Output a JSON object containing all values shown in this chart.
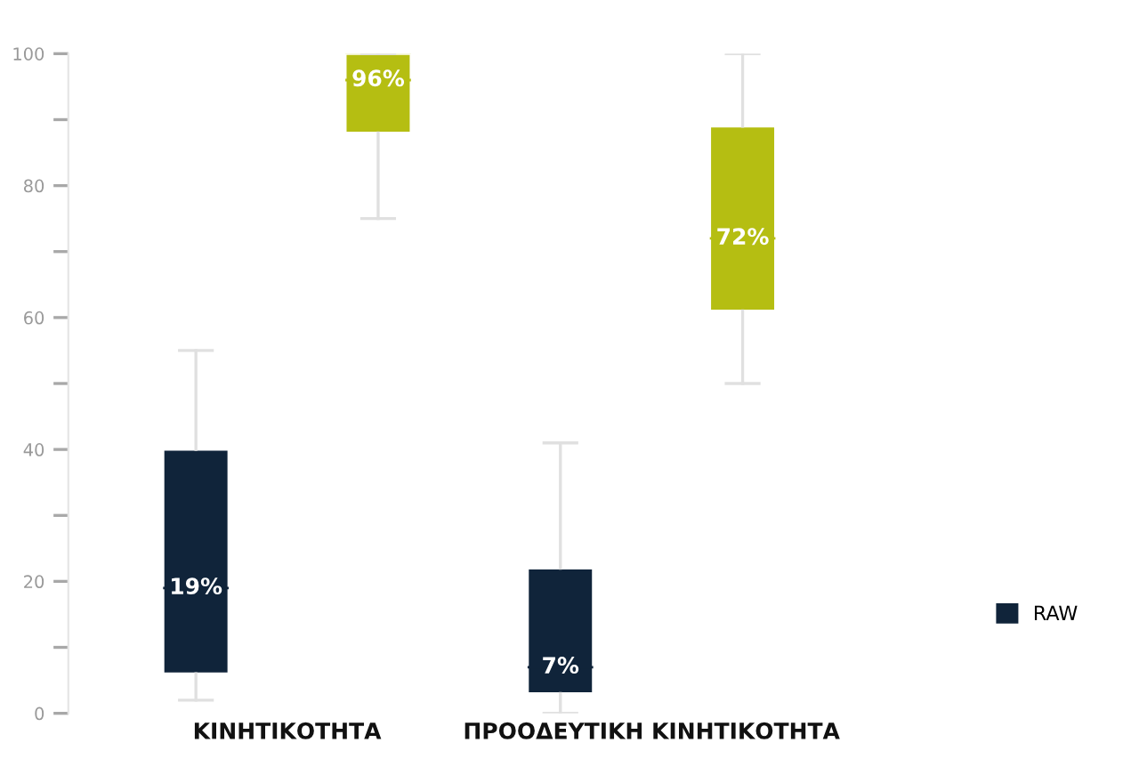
{
  "chart_data": {
    "type": "box",
    "categories": [
      "ΚΙΝΗΤΙΚΟΤΗΤΑ",
      "ΠΡΟΟΔΕΥΤΙΚΗ ΚΙΝΗΤΙΚΟΤΗΤΑ"
    ],
    "series": [
      {
        "name": "RAW",
        "color": "#10243a",
        "boxes": [
          {
            "low": 2,
            "q1": 6,
            "median": 19,
            "q3": 40,
            "high": 55
          },
          {
            "low": 0,
            "q1": 3,
            "median": 7,
            "q3": 22,
            "high": 41
          }
        ],
        "value_labels": [
          "19%",
          "7%"
        ]
      },
      {
        "color": "#b5be12",
        "boxes": [
          {
            "low": 75,
            "q1": 88,
            "median": 96,
            "q3": 100,
            "high": 100
          },
          {
            "low": 50,
            "q1": 61,
            "median": 72,
            "q3": 89,
            "high": 100
          }
        ],
        "value_labels": [
          "96%",
          "72%"
        ]
      }
    ],
    "ylim": [
      0,
      100
    ],
    "yticks": [
      0,
      20,
      40,
      60,
      80,
      100
    ],
    "grid": false,
    "legend": "right"
  }
}
